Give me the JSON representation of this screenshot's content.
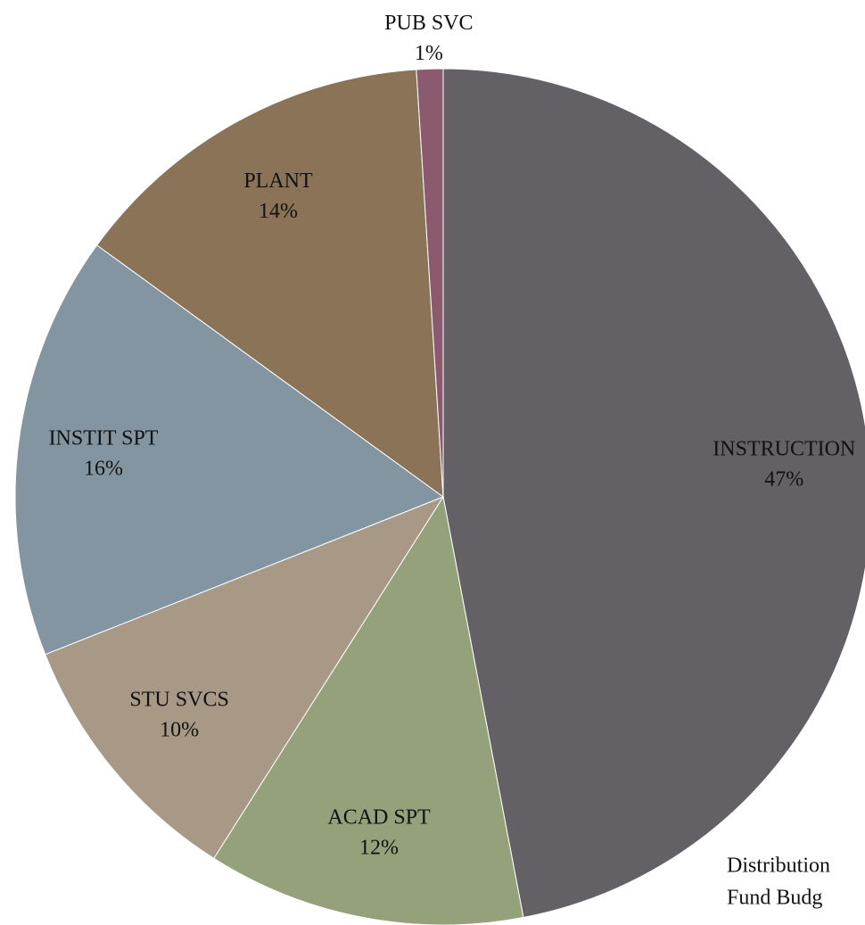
{
  "chart_data": {
    "type": "pie",
    "title": "Distribution",
    "subtitle": "Fund Budg",
    "categories": [
      "INSTRUCTION",
      "ACAD SPT",
      "STU SVCS",
      "INSTIT SPT",
      "PLANT",
      "PUB SVC"
    ],
    "values": [
      47,
      12,
      10,
      16,
      14,
      1
    ],
    "value_labels": [
      "47%",
      "12%",
      "10%",
      "16%",
      "14%",
      "1%"
    ],
    "colors": [
      "#636166",
      "#94a17a",
      "#a89886",
      "#8295a0",
      "#8b7358",
      "#8b5a6e"
    ]
  }
}
